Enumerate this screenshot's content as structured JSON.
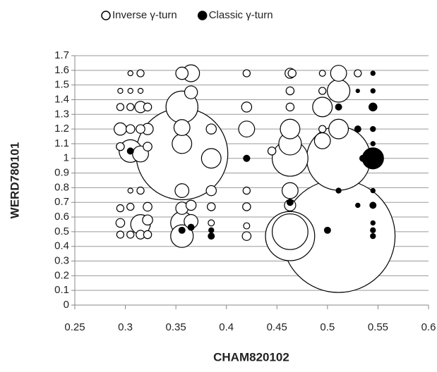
{
  "chart_data": {
    "type": "scatter",
    "x_label": "CHAM820102",
    "y_label": "WERD780101",
    "xlim": [
      0.25,
      0.6
    ],
    "xticks": [
      0.25,
      0.3,
      0.35,
      0.4,
      0.45,
      0.5,
      0.55,
      0.6
    ],
    "ylim": [
      0,
      1.7
    ],
    "yticks": [
      0,
      0.1,
      0.2,
      0.3,
      0.4,
      0.5,
      0.6,
      0.7,
      0.8,
      0.9,
      1,
      1.1,
      1.2,
      1.3,
      1.4,
      1.5,
      1.6,
      1.7
    ],
    "grid": true,
    "legend": "top",
    "series": [
      {
        "name": "Inverse γ-turn",
        "color": "#000000",
        "filled": false,
        "x": [
          0.305,
          0.315,
          0.356,
          0.365,
          0.42,
          0.463,
          0.465,
          0.495,
          0.511,
          0.53,
          0.295,
          0.305,
          0.315,
          0.365,
          0.463,
          0.495,
          0.511,
          0.295,
          0.305,
          0.315,
          0.322,
          0.356,
          0.42,
          0.463,
          0.495,
          0.295,
          0.305,
          0.315,
          0.322,
          0.356,
          0.385,
          0.42,
          0.463,
          0.511,
          0.495,
          0.295,
          0.305,
          0.315,
          0.322,
          0.356,
          0.356,
          0.385,
          0.42,
          0.445,
          0.463,
          0.463,
          0.511,
          0.495,
          0.305,
          0.315,
          0.356,
          0.385,
          0.42,
          0.463,
          0.295,
          0.305,
          0.322,
          0.356,
          0.365,
          0.385,
          0.42,
          0.463,
          0.295,
          0.315,
          0.322,
          0.356,
          0.365,
          0.385,
          0.42,
          0.463,
          0.463,
          0.511,
          0.295,
          0.305,
          0.315,
          0.322,
          0.356,
          0.42
        ],
        "values": [
          1.58,
          1.58,
          1.58,
          1.58,
          1.58,
          1.58,
          1.58,
          1.58,
          1.58,
          1.58,
          1.46,
          1.46,
          1.46,
          1.45,
          1.46,
          1.46,
          1.46,
          1.35,
          1.35,
          1.35,
          1.35,
          1.35,
          1.35,
          1.35,
          1.35,
          1.2,
          1.2,
          1.2,
          1.2,
          1.21,
          1.2,
          1.2,
          1.2,
          1.2,
          1.2,
          1.08,
          1.05,
          1.03,
          1.08,
          1.03,
          1.1,
          1.0,
          1.0,
          1.05,
          1.1,
          1.0,
          1.0,
          1.12,
          0.78,
          0.78,
          0.78,
          0.78,
          0.78,
          0.78,
          0.66,
          0.67,
          0.67,
          0.66,
          0.68,
          0.67,
          0.67,
          0.68,
          0.56,
          0.55,
          0.58,
          0.56,
          0.57,
          0.56,
          0.54,
          0.5,
          0.47,
          0.47,
          0.48,
          0.48,
          0.48,
          0.48,
          0.47,
          0.47
        ],
        "sizes": [
          0.2,
          0.4,
          1.2,
          2.25,
          0.4,
          0.8,
          0.5,
          0.3,
          2,
          0.4,
          0.2,
          0.2,
          0.2,
          1.3,
          0.5,
          0.4,
          4,
          0.4,
          0.4,
          1,
          0.5,
          8,
          0.8,
          0.5,
          3,
          1.2,
          0.6,
          0.6,
          1,
          2,
          0.8,
          2,
          3,
          3,
          0.4,
          0.5,
          4,
          2,
          0.6,
          66,
          3,
          3,
          0.3,
          0.5,
          4,
          10,
          32,
          2,
          0.2,
          0.4,
          1.5,
          0.8,
          0.4,
          2,
          0.4,
          0.4,
          0.6,
          1.2,
          0.8,
          0.5,
          0.5,
          1,
          0.6,
          3,
          0.8,
          4,
          1.5,
          0.3,
          0.3,
          10,
          19,
          100,
          0.4,
          0.4,
          0.6,
          0.5,
          4,
          0.6
        ]
      },
      {
        "name": "Classic γ-turn",
        "color": "#000000",
        "filled": true,
        "x": [
          0.545,
          0.53,
          0.545,
          0.545,
          0.511,
          0.545,
          0.53,
          0.545,
          0.545,
          0.535,
          0.42,
          0.305,
          0.511,
          0.545,
          0.545,
          0.53,
          0.545,
          0.545,
          0.545,
          0.5,
          0.385,
          0.385,
          0.356,
          0.365,
          0.463
        ],
        "values": [
          1.58,
          1.46,
          1.46,
          1.35,
          1.35,
          1.2,
          1.2,
          1.1,
          1.0,
          1.0,
          1.0,
          1.05,
          0.78,
          0.78,
          0.68,
          0.68,
          0.56,
          0.51,
          0.47,
          0.51,
          0.51,
          0.47,
          0.51,
          0.53,
          0.7
        ],
        "sizes": [
          0.15,
          0.1,
          0.15,
          0.5,
          0.3,
          0.2,
          0.3,
          0.15,
          3.5,
          0.3,
          0.3,
          0.3,
          0.2,
          0.15,
          0.3,
          0.15,
          0.15,
          0.2,
          0.2,
          0.3,
          0.2,
          0.3,
          0.3,
          0.3,
          0.3
        ]
      }
    ]
  }
}
